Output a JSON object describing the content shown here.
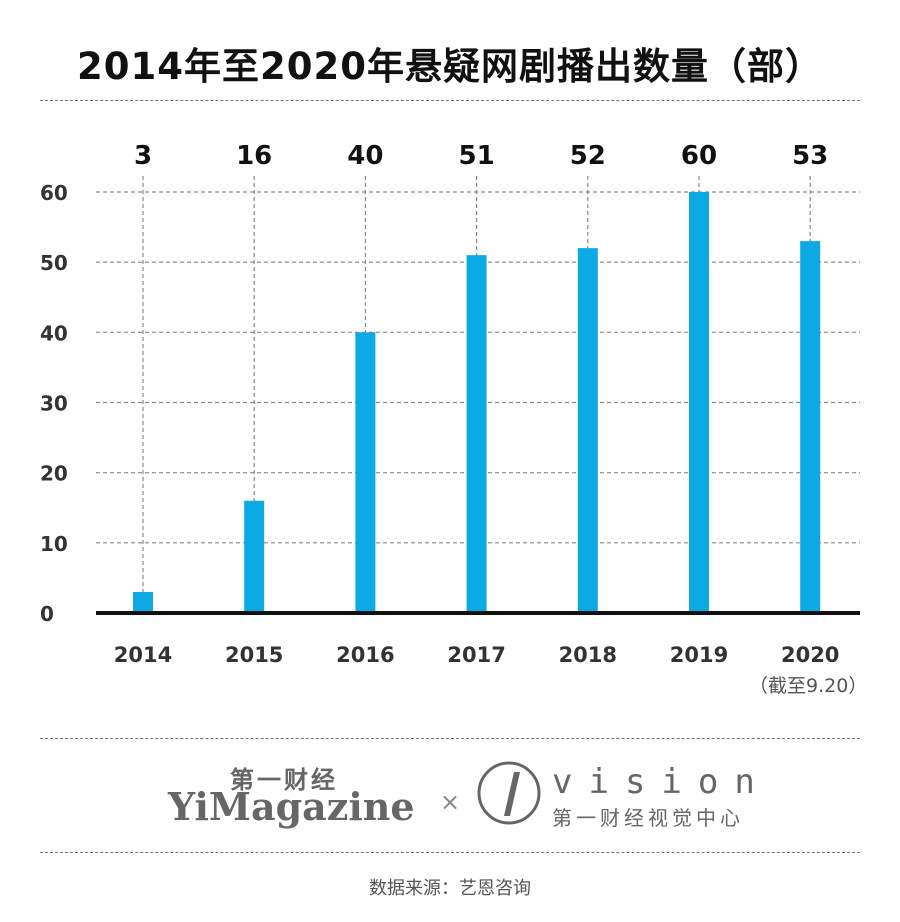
{
  "title": "2014年至2020年悬疑网剧播出数量（部）",
  "chart_data": {
    "type": "bar",
    "categories": [
      "2014",
      "2015",
      "2016",
      "2017",
      "2018",
      "2019",
      "2020"
    ],
    "values": [
      3,
      16,
      40,
      51,
      52,
      60,
      53
    ],
    "data_labels": [
      "3",
      "16",
      "40",
      "51",
      "52",
      "60",
      "53"
    ],
    "y_ticks": [
      "0",
      "10",
      "20",
      "30",
      "40",
      "50",
      "60"
    ],
    "ylim": [
      0,
      60
    ],
    "grid": true,
    "bar_color": "#0ca9e4",
    "annotation": "（截至9.20）"
  },
  "branding": {
    "yimagazine_cn": "第一财经",
    "yimagazine": "YiMagazine",
    "separator": "×",
    "vision_word": "vision",
    "vision_cn": "第一财经视觉中心"
  },
  "source": "数据来源：艺恩咨询"
}
